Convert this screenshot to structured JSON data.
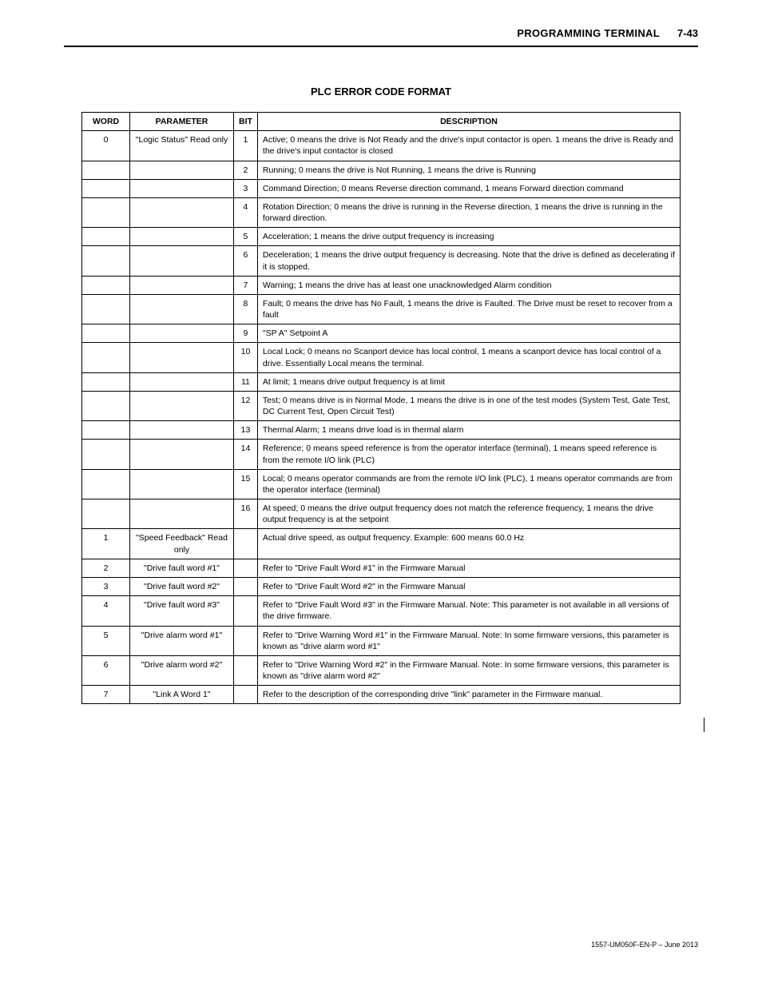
{
  "header": {
    "title": "PROGRAMMING TERMINAL",
    "page": "7-43"
  },
  "section_title": "PLC ERROR CODE FORMAT",
  "columns": [
    "WORD",
    "PARAMETER",
    "BIT",
    "DESCRIPTION"
  ],
  "rows": [
    {
      "word": "0",
      "param": "\"Logic Status\" Read only",
      "bit": "1",
      "desc": "Active; 0 means the drive is Not Ready and the drive's input contactor is open. 1 means the drive is Ready and the drive's input contactor is closed"
    },
    {
      "word": "",
      "param": "",
      "bit": "2",
      "desc": "Running; 0 means the drive is Not Running, 1 means the drive is Running"
    },
    {
      "word": "",
      "param": "",
      "bit": "3",
      "desc": "Command Direction; 0 means Reverse direction command, 1 means Forward direction command"
    },
    {
      "word": "",
      "param": "",
      "bit": "4",
      "desc": "Rotation Direction; 0 means the drive is running in the Reverse direction, 1 means the drive is running in the forward direction."
    },
    {
      "word": "",
      "param": "",
      "bit": "5",
      "desc": "Acceleration; 1 means the drive output frequency is increasing"
    },
    {
      "word": "",
      "param": "",
      "bit": "6",
      "desc": "Deceleration; 1 means the drive output frequency is decreasing. Note that the drive is defined as decelerating if it is stopped."
    },
    {
      "word": "",
      "param": "",
      "bit": "7",
      "desc": "Warning; 1 means the drive has at least one unacknowledged Alarm condition"
    },
    {
      "word": "",
      "param": "",
      "bit": "8",
      "desc": "Fault; 0 means the drive has No Fault, 1 means the drive is Faulted. The Drive must be reset to recover from a fault"
    },
    {
      "word": "",
      "param": "",
      "bit": "9",
      "desc": "\"SP A\" Setpoint A"
    },
    {
      "word": "",
      "param": "",
      "bit": "10",
      "desc": "Local Lock; 0 means no Scanport device has local control, 1 means a scanport device has local control of a drive. Essentially Local means the terminal."
    },
    {
      "word": "",
      "param": "",
      "bit": "11",
      "desc": "At limit; 1 means drive output frequency is at limit"
    },
    {
      "word": "",
      "param": "",
      "bit": "12",
      "desc": "Test; 0 means drive is in Normal Mode, 1 means the drive is in one of the test modes (System Test, Gate Test, DC Current Test, Open Circuit Test)"
    },
    {
      "word": "",
      "param": "",
      "bit": "13",
      "desc": "Thermal Alarm; 1 means drive load is in thermal alarm"
    },
    {
      "word": "",
      "param": "",
      "bit": "14",
      "desc": "Reference; 0 means speed reference is from the operator interface (terminal), 1 means speed reference is from the remote I/O link (PLC)"
    },
    {
      "word": "",
      "param": "",
      "bit": "15",
      "desc": "Local; 0 means operator commands are from the remote I/O link (PLC), 1 means operator commands are from the operator interface (terminal)"
    },
    {
      "word": "",
      "param": "",
      "bit": "16",
      "desc": "At speed; 0 means the drive output frequency does not match the reference frequency, 1 means the drive output frequency is at the setpoint"
    },
    {
      "word": "1",
      "param": "\"Speed Feedback\" Read only",
      "bit": "",
      "desc": "Actual drive speed, as output frequency. Example: 600 means 60.0 Hz"
    },
    {
      "word": "2",
      "param": "\"Drive fault word #1\"",
      "bit": "",
      "desc": "Refer to \"Drive Fault Word #1\" in the Firmware Manual"
    },
    {
      "word": "3",
      "param": "\"Drive fault word #2\"",
      "bit": "",
      "desc": "Refer to \"Drive Fault Word #2\" in the Firmware Manual"
    },
    {
      "word": "4",
      "param": "\"Drive fault word #3\"",
      "bit": "",
      "desc": "Refer to \"Drive Fault Word #3\" in the Firmware Manual. Note: This parameter is not available in all versions of the drive firmware."
    },
    {
      "word": "5",
      "param": "\"Drive alarm word #1\"",
      "bit": "",
      "desc": "Refer to \"Drive Warning Word #1\" in the Firmware Manual. Note: In some firmware versions, this parameter is known as \"drive alarm word #1\""
    },
    {
      "word": "6",
      "param": "\"Drive alarm word #2\"",
      "bit": "",
      "desc": "Refer to \"Drive Warning Word #2\" in the Firmware Manual. Note: In some firmware versions, this parameter is known as \"drive alarm word #2\""
    },
    {
      "word": "7",
      "param": "\"Link A Word 1\"",
      "bit": "",
      "desc": "Refer to the description of the corresponding drive \"link\" parameter in the Firmware manual."
    }
  ],
  "footer": "1557-UM050F-EN-P – June 2013"
}
